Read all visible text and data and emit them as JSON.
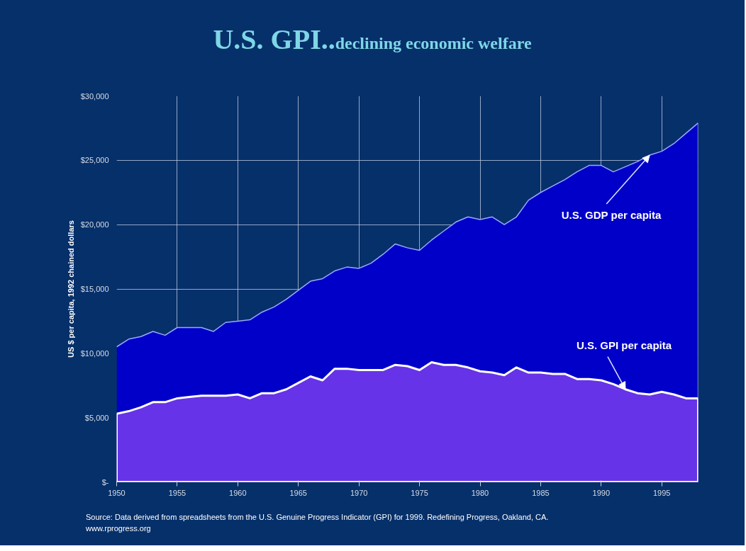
{
  "chart_data": {
    "type": "area",
    "title": "U.S. GPI..",
    "subtitle": "declining economic welfare",
    "ylabel": "US $ per capita, 1992 chained dollars",
    "x": [
      1950,
      1951,
      1952,
      1953,
      1954,
      1955,
      1956,
      1957,
      1958,
      1959,
      1960,
      1961,
      1962,
      1963,
      1964,
      1965,
      1966,
      1967,
      1968,
      1969,
      1970,
      1971,
      1972,
      1973,
      1974,
      1975,
      1976,
      1977,
      1978,
      1979,
      1980,
      1981,
      1982,
      1983,
      1984,
      1985,
      1986,
      1987,
      1988,
      1989,
      1990,
      1991,
      1992,
      1993,
      1994,
      1995,
      1996,
      1997,
      1998
    ],
    "series": [
      {
        "color": "#0000c8",
        "values": [
          10500,
          11100,
          11300,
          11700,
          11400,
          12000,
          12000,
          12000,
          11700,
          12400,
          12500,
          12600,
          13200,
          13600,
          14200,
          14900,
          15600,
          15800,
          16400,
          16700,
          16600,
          17000,
          17700,
          18500,
          18200,
          18000,
          18800,
          19500,
          20200,
          20600,
          20400,
          20600,
          20000,
          20600,
          21900,
          22500,
          23000,
          23500,
          24100,
          24600,
          24600,
          24100,
          24500,
          24900,
          25400,
          25700,
          26300,
          27100,
          27900
        ]
      },
      {
        "color": "#6633e8",
        "values": [
          5300,
          5500,
          5800,
          6200,
          6200,
          6500,
          6600,
          6700,
          6700,
          6700,
          6800,
          6500,
          6900,
          6900,
          7200,
          7700,
          8200,
          7900,
          8800,
          8800,
          8700,
          8700,
          8700,
          9100,
          9000,
          8700,
          9300,
          9100,
          9100,
          8900,
          8600,
          8500,
          8300,
          8900,
          8500,
          8500,
          8400,
          8400,
          8000,
          8000,
          7900,
          7600,
          7200,
          6900,
          6800,
          7000,
          6800,
          6500,
          6500
        ]
      }
    ],
    "xlim": [
      1950,
      1998
    ],
    "ylim": [
      0,
      30000
    ],
    "xticks": [
      1950,
      1955,
      1960,
      1965,
      1970,
      1975,
      1980,
      1985,
      1990,
      1995
    ],
    "yticks": [
      {
        "value": 0,
        "label": "$-"
      },
      {
        "value": 5000,
        "label": "$5,000"
      },
      {
        "value": 10000,
        "label": "$10,000"
      },
      {
        "value": 15000,
        "label": "$15,000"
      },
      {
        "value": 20000,
        "label": "$20,000"
      },
      {
        "value": 25000,
        "label": "$25,000"
      },
      {
        "value": 30000,
        "label": "$30,000"
      }
    ],
    "grid": true,
    "annotations": [
      {
        "text": "U.S. GDP per capita",
        "x": 1994,
        "y": 25400
      },
      {
        "text": "U.S. GPI per capita",
        "x": 1992,
        "y": 7200
      },
      "Source: Data derived from spreadsheets from the U.S. Genuine Progress Indicator (GPI) for 1999. Redefining Progress, Oakland, CA.",
      "www.rprogress.org"
    ]
  }
}
